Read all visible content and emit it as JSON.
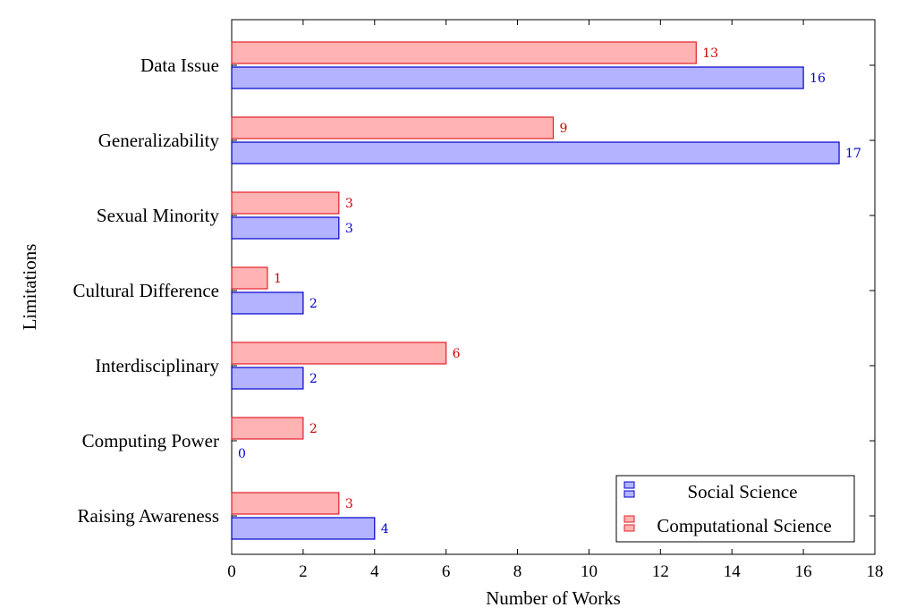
{
  "chart_data": {
    "type": "bar",
    "orientation": "horizontal",
    "categories": [
      "Data Issue",
      "Generalizability",
      "Sexual Minority",
      "Cultural Difference",
      "Interdisciplinary",
      "Computing Power",
      "Raising Awareness"
    ],
    "series": [
      {
        "name": "Social Science",
        "values": [
          16,
          17,
          3,
          2,
          2,
          0,
          4
        ],
        "fill": "#b3b3ff",
        "stroke": "#0000cc",
        "label_color": "#0000cc"
      },
      {
        "name": "Computational Science",
        "values": [
          13,
          9,
          3,
          1,
          6,
          2,
          3
        ],
        "fill": "#ffb3b3",
        "stroke": "#e0202a",
        "label_color": "#cc0000"
      }
    ],
    "xlabel": "Number of Works",
    "ylabel": "Limitations",
    "xlim": [
      0,
      18
    ],
    "xticks": [
      0,
      2,
      4,
      6,
      8,
      10,
      12,
      14,
      16,
      18
    ],
    "legend": "bottom-right",
    "grid": false
  }
}
